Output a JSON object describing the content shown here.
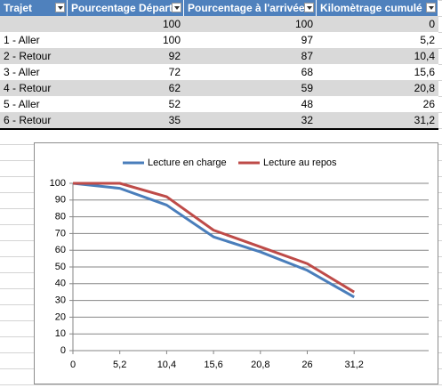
{
  "table": {
    "headers": [
      "Trajet",
      "Pourcentage Départ",
      "Pourcentage à l'arrivée",
      "Kilomètrage cumulé"
    ],
    "rows": [
      [
        null,
        "100",
        "100",
        "0"
      ],
      [
        "1 - Aller",
        "100",
        "97",
        "5,2"
      ],
      [
        "2 - Retour",
        "92",
        "87",
        "10,4"
      ],
      [
        "3 - Aller",
        "72",
        "68",
        "15,6"
      ],
      [
        "4 - Retour",
        "62",
        "59",
        "20,8"
      ],
      [
        "5 - Aller",
        "52",
        "48",
        "26"
      ],
      [
        "6 - Retour",
        "35",
        "32",
        "31,2"
      ]
    ]
  },
  "chart_data": {
    "type": "line",
    "categories": [
      "0",
      "5,2",
      "10,4",
      "15,6",
      "20,8",
      "26",
      "31,2"
    ],
    "series": [
      {
        "name": "Lecture en charge",
        "color": "#4a7ebb",
        "values": [
          100,
          97,
          87,
          68,
          59,
          48,
          32
        ]
      },
      {
        "name": "Lecture au repos",
        "color": "#be4b48",
        "values": [
          100,
          100,
          92,
          72,
          62,
          52,
          35
        ]
      }
    ],
    "ylim": [
      0,
      100
    ],
    "yticks": [
      0,
      10,
      20,
      30,
      40,
      50,
      60,
      70,
      80,
      90,
      100
    ],
    "grid": true,
    "legend": "top"
  }
}
